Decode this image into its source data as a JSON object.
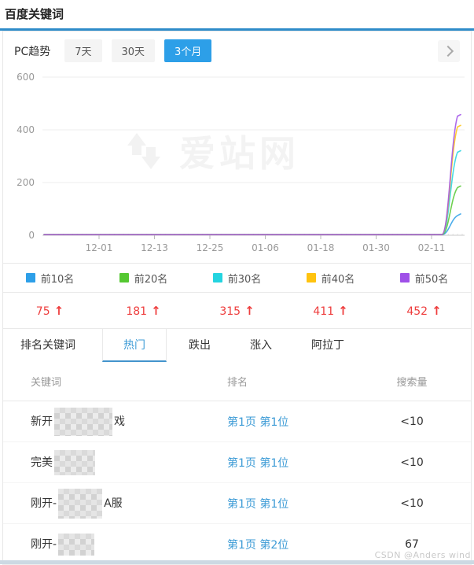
{
  "page": {
    "title": "百度关键词",
    "csdn_watermark": "CSDN @Anders wind",
    "aizhan_watermark": "爱站网"
  },
  "trend": {
    "label": "PC趋势",
    "ranges": [
      "7天",
      "30天",
      "3个月"
    ],
    "active_range": "3个月"
  },
  "chart_data": {
    "type": "line",
    "title": "PC趋势 3个月",
    "x_tick_labels": [
      "12-01",
      "12-13",
      "12-25",
      "01-06",
      "01-18",
      "01-30",
      "02-11"
    ],
    "ylim": [
      0,
      600
    ],
    "yticks": [
      0,
      200,
      400,
      600
    ],
    "grid": true,
    "legend_position": "bottom",
    "series": [
      {
        "name": "前10名",
        "color": "#2d9fe8",
        "start_value": 0,
        "end_value": 75
      },
      {
        "name": "前20名",
        "color": "#55c832",
        "start_value": 0,
        "end_value": 181
      },
      {
        "name": "前30名",
        "color": "#24d4e0",
        "start_value": 0,
        "end_value": 315
      },
      {
        "name": "前40名",
        "color": "#ffc30f",
        "start_value": 0,
        "end_value": 411
      },
      {
        "name": "前50名",
        "color": "#9f50e8",
        "start_value": 0,
        "end_value": 452
      }
    ],
    "shape_note": "all series flat at 0 from chart start until just after 02-11, then spike sharply upward at the right edge"
  },
  "legend": {
    "items": [
      {
        "label": "前10名",
        "color": "#2d9fe8",
        "change": "75",
        "direction": "up"
      },
      {
        "label": "前20名",
        "color": "#55c832",
        "change": "181",
        "direction": "up"
      },
      {
        "label": "前30名",
        "color": "#24d4e0",
        "change": "315",
        "direction": "up"
      },
      {
        "label": "前40名",
        "color": "#ffc30f",
        "change": "411",
        "direction": "up"
      },
      {
        "label": "前50名",
        "color": "#9f50e8",
        "change": "452",
        "direction": "up"
      }
    ]
  },
  "tabs": {
    "items": [
      "排名关键词",
      "热门",
      "跌出",
      "涨入",
      "阿拉丁"
    ],
    "active": "热门"
  },
  "table": {
    "headers": [
      "关键词",
      "排名",
      "搜索量"
    ],
    "rows": [
      {
        "keyword_prefix": "新开",
        "keyword_censored": true,
        "keyword_suffix": "戏",
        "rank": "第1页 第1位",
        "volume": "<10"
      },
      {
        "keyword_prefix": "完美",
        "keyword_censored": true,
        "keyword_suffix": "",
        "rank": "第1页 第1位",
        "volume": "<10"
      },
      {
        "keyword_prefix": "刚开-",
        "keyword_censored": true,
        "keyword_suffix": "A服",
        "rank": "第1页 第1位",
        "volume": "<10"
      },
      {
        "keyword_prefix": "刚开-",
        "keyword_censored": true,
        "keyword_suffix": "",
        "rank": "第1页 第2位",
        "volume": "67"
      }
    ]
  },
  "icons": {
    "up_arrow": "↑"
  },
  "colors": {
    "accent_blue": "#2d9fe8",
    "link_blue": "#3c9bd6",
    "change_red": "#ee3d3d",
    "title_rule": "#2e8cc9"
  }
}
